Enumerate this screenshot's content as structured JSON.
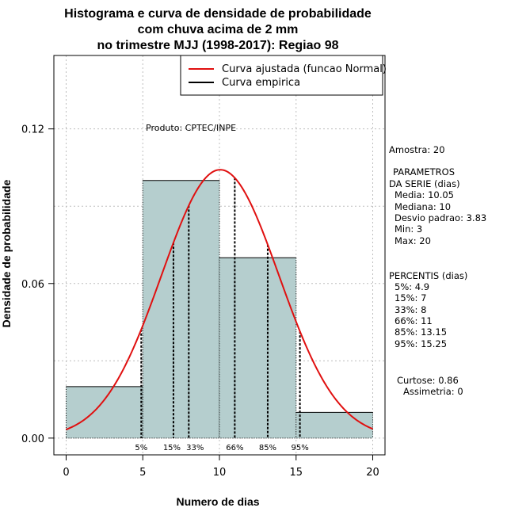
{
  "chart_data": {
    "type": "bar",
    "title": [
      "Histograma e curva de densidade de probabilidade",
      "com chuva acima de 2 mm",
      "no trimestre MJJ (1998-2017): Regiao 98"
    ],
    "xlabel": "Numero de dias",
    "ylabel": "Densidade de probabilidade",
    "xlim": [
      -0.8,
      20.8
    ],
    "ylim": [
      -0.0065,
      0.1485
    ],
    "x_ticks": [
      0,
      5,
      10,
      15,
      20
    ],
    "y_ticks": [
      0.0,
      0.06,
      0.12
    ],
    "y_tick_labels": [
      "0.00",
      "0.06",
      "0.12"
    ],
    "grid": true,
    "bins": [
      {
        "start": 0,
        "end": 5,
        "density": 0.02
      },
      {
        "start": 5,
        "end": 10,
        "density": 0.1
      },
      {
        "start": 10,
        "end": 15,
        "density": 0.07
      },
      {
        "start": 15,
        "end": 20,
        "density": 0.01
      }
    ],
    "bar_color": "#b5cece",
    "curve": {
      "name": "Curva ajustada (funcao Normal)",
      "mean": 10.05,
      "sd": 3.83,
      "color": "#e01010"
    },
    "empirical_name": "Curva empirica",
    "percentiles": [
      {
        "label": "5%",
        "value": 4.9
      },
      {
        "label": "15%",
        "value": 7
      },
      {
        "label": "33%",
        "value": 8
      },
      {
        "label": "66%",
        "value": 11
      },
      {
        "label": "85%",
        "value": 13.15
      },
      {
        "label": "95%",
        "value": 15.25
      }
    ],
    "legend_position": "top-right",
    "annotation": "Produto: CPTEC/INPE",
    "side_text": [
      "Amostra: 20",
      "PARAMETROS",
      "DA SERIE (dias)",
      "Media: 10.05",
      "Mediana: 10",
      "Desvio padrao: 3.83",
      "Min: 3",
      "Max: 20",
      "PERCENTIS (dias)",
      "5%: 4.9",
      "15%: 7",
      "33%: 8",
      "66%: 11",
      "85%: 13.15",
      "95%: 15.25",
      "Curtose: 0.86",
      "Assimetria: 0"
    ]
  }
}
